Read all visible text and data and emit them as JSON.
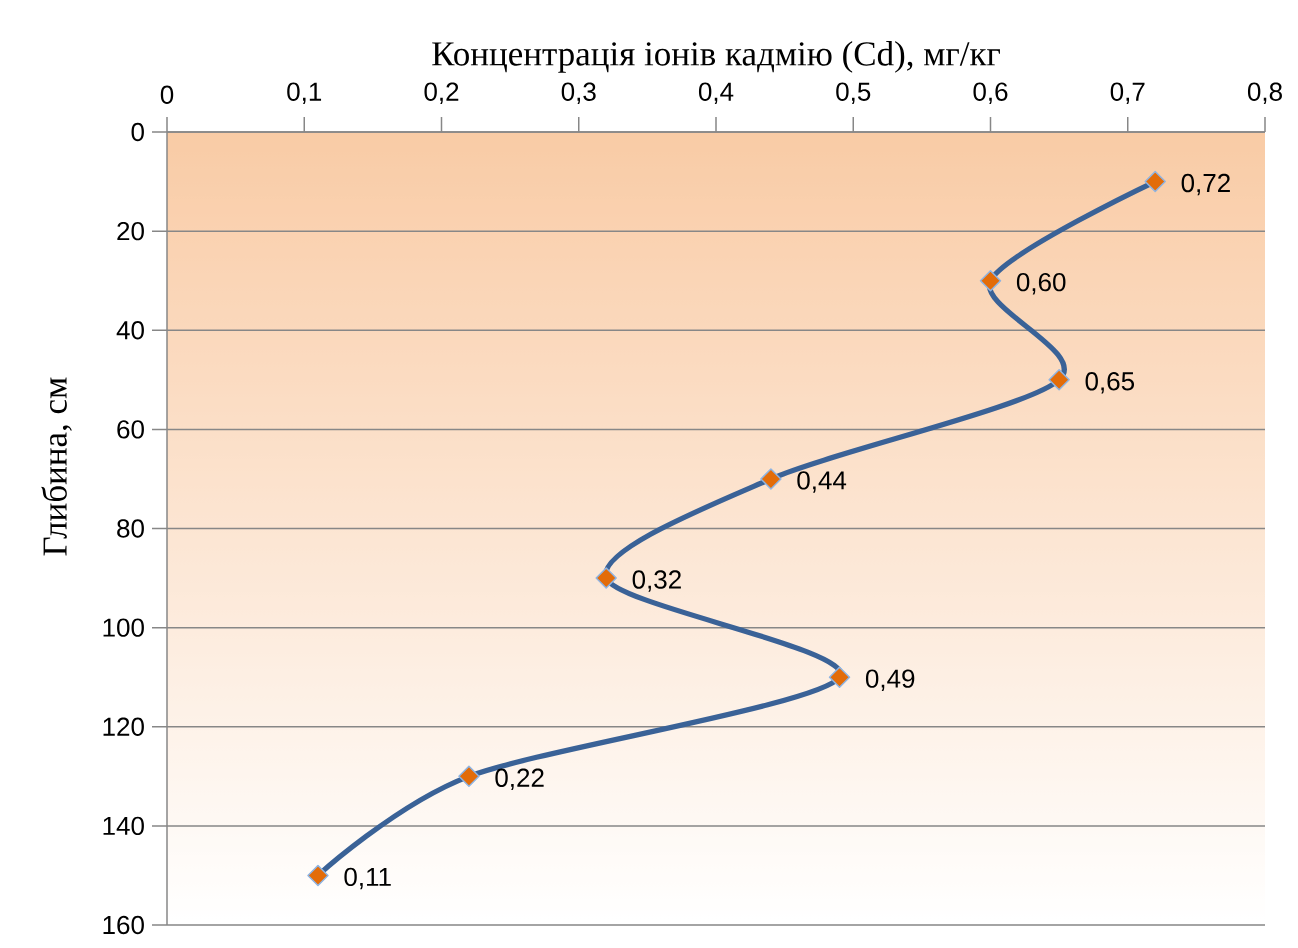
{
  "chart_data": {
    "type": "line",
    "xlabel": "Концентрація іонів кадмію (Cd), мг/кг",
    "ylabel": "Глибина, см",
    "orientation": "horizontal",
    "x": [
      10,
      30,
      50,
      70,
      90,
      110,
      130,
      150
    ],
    "series": [
      {
        "color": "#3a6297",
        "values": [
          0.72,
          0.6,
          0.65,
          0.44,
          0.32,
          0.49,
          0.22,
          0.11
        ],
        "value_labels": [
          "0,72",
          "0,60",
          "0,65",
          "0,44",
          "0,32",
          "0,49",
          "0,22",
          "0,11"
        ]
      }
    ],
    "xlim": [
      0,
      0.8
    ],
    "xticks": [
      0,
      {
        "value": 0.1,
        "label": "0,1"
      },
      {
        "value": 0.2,
        "label": "0,2"
      },
      {
        "value": 0.3,
        "label": "0,3"
      },
      {
        "value": 0.4,
        "label": "0,4"
      },
      {
        "value": 0.5,
        "label": "0,5"
      },
      {
        "value": 0.6,
        "label": "0,6"
      },
      {
        "value": 0.7,
        "label": "0,7"
      },
      {
        "value": 0.8,
        "label": "0,8"
      }
    ],
    "ylim": [
      160,
      0
    ],
    "yticks": [
      0,
      20,
      40,
      60,
      80,
      100,
      120,
      140,
      160
    ],
    "grid": "y",
    "marker": "diamond",
    "line_style": "solid"
  }
}
